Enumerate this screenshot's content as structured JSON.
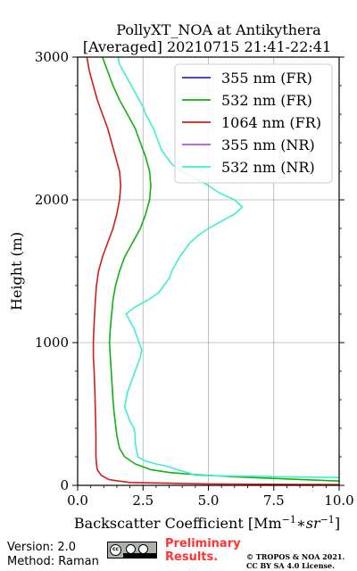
{
  "chart_data": {
    "type": "line",
    "title": "PollyXT_NOA at Antikythera",
    "subtitle": "[Averaged] 20210715 21:41-22:41",
    "xlabel": "Backscatter Coefficient [Mm",
    "xlabel_sup1": "−1",
    "xlabel_mid": "∗sr",
    "xlabel_sup2": "−1",
    "xlabel_end": "]",
    "ylabel": "Height (m)",
    "xlim": [
      0,
      10
    ],
    "ylim": [
      0,
      3000
    ],
    "xticks": [
      0,
      2.5,
      5,
      7.5,
      10
    ],
    "xtick_labels": [
      "0.0",
      "2.5",
      "5.0",
      "7.5",
      "10.0"
    ],
    "yticks": [
      0,
      1000,
      2000,
      3000
    ],
    "ytick_labels": [
      "0",
      "1000",
      "2000",
      "3000"
    ],
    "grid": true,
    "legend_position": "top-right",
    "series": [
      {
        "name": "355 nm (FR)",
        "color": "#2a2ad0",
        "points": []
      },
      {
        "name": "532 nm (FR)",
        "color": "#12b012",
        "points": [
          [
            10,
            30
          ],
          [
            8,
            45
          ],
          [
            6,
            60
          ],
          [
            4.5,
            75
          ],
          [
            3.5,
            90
          ],
          [
            2.8,
            110
          ],
          [
            2.2,
            150
          ],
          [
            1.8,
            200
          ],
          [
            1.6,
            260
          ],
          [
            1.5,
            350
          ],
          [
            1.4,
            500
          ],
          [
            1.35,
            600
          ],
          [
            1.3,
            750
          ],
          [
            1.25,
            900
          ],
          [
            1.22,
            1000
          ],
          [
            1.25,
            1100
          ],
          [
            1.3,
            1200
          ],
          [
            1.35,
            1300
          ],
          [
            1.45,
            1400
          ],
          [
            1.6,
            1500
          ],
          [
            1.8,
            1600
          ],
          [
            2.1,
            1700
          ],
          [
            2.4,
            1800
          ],
          [
            2.6,
            1900
          ],
          [
            2.75,
            2000
          ],
          [
            2.8,
            2100
          ],
          [
            2.75,
            2200
          ],
          [
            2.6,
            2300
          ],
          [
            2.4,
            2400
          ],
          [
            2.2,
            2500
          ],
          [
            1.9,
            2600
          ],
          [
            1.6,
            2700
          ],
          [
            1.35,
            2800
          ],
          [
            1.15,
            2900
          ],
          [
            0.95,
            3000
          ]
        ]
      },
      {
        "name": "1064 nm (FR)",
        "color": "#d41c1c",
        "points": [
          [
            10,
            5
          ],
          [
            5,
            10
          ],
          [
            2,
            20
          ],
          [
            1.2,
            40
          ],
          [
            0.9,
            70
          ],
          [
            0.75,
            110
          ],
          [
            0.72,
            150
          ],
          [
            0.7,
            200
          ],
          [
            0.7,
            350
          ],
          [
            0.68,
            500
          ],
          [
            0.66,
            650
          ],
          [
            0.63,
            800
          ],
          [
            0.6,
            900
          ],
          [
            0.6,
            1000
          ],
          [
            0.62,
            1100
          ],
          [
            0.65,
            1200
          ],
          [
            0.68,
            1300
          ],
          [
            0.72,
            1400
          ],
          [
            0.8,
            1500
          ],
          [
            0.95,
            1600
          ],
          [
            1.15,
            1700
          ],
          [
            1.35,
            1800
          ],
          [
            1.5,
            1900
          ],
          [
            1.6,
            2000
          ],
          [
            1.65,
            2100
          ],
          [
            1.6,
            2200
          ],
          [
            1.45,
            2300
          ],
          [
            1.3,
            2400
          ],
          [
            1.15,
            2500
          ],
          [
            0.95,
            2600
          ],
          [
            0.75,
            2700
          ],
          [
            0.6,
            2800
          ],
          [
            0.45,
            2900
          ],
          [
            0.35,
            3000
          ]
        ]
      },
      {
        "name": "355 nm (NR)",
        "color": "#b355e0",
        "points": []
      },
      {
        "name": "532 nm (NR)",
        "color": "#3ef0d0",
        "points": [
          [
            10,
            55
          ],
          [
            8,
            60
          ],
          [
            6,
            65
          ],
          [
            4.5,
            70
          ],
          [
            4.2,
            90
          ],
          [
            3.8,
            110
          ],
          [
            3.5,
            130
          ],
          [
            3,
            150
          ],
          [
            2.6,
            170
          ],
          [
            2.3,
            200
          ],
          [
            2.25,
            250
          ],
          [
            2.2,
            300
          ],
          [
            2.2,
            350
          ],
          [
            2.15,
            400
          ],
          [
            2.0,
            450
          ],
          [
            1.9,
            500
          ],
          [
            1.8,
            550
          ],
          [
            1.85,
            600
          ],
          [
            1.9,
            650
          ],
          [
            2.0,
            700
          ],
          [
            2.1,
            750
          ],
          [
            2.2,
            800
          ],
          [
            2.3,
            850
          ],
          [
            2.4,
            900
          ],
          [
            2.45,
            950
          ],
          [
            2.35,
            1000
          ],
          [
            2.25,
            1050
          ],
          [
            2.15,
            1100
          ],
          [
            2.0,
            1150
          ],
          [
            1.85,
            1200
          ],
          [
            2.2,
            1250
          ],
          [
            2.7,
            1300
          ],
          [
            3.1,
            1350
          ],
          [
            3.3,
            1400
          ],
          [
            3.5,
            1450
          ],
          [
            3.6,
            1500
          ],
          [
            3.75,
            1550
          ],
          [
            3.9,
            1600
          ],
          [
            4.1,
            1650
          ],
          [
            4.3,
            1700
          ],
          [
            4.6,
            1750
          ],
          [
            5.0,
            1800
          ],
          [
            5.5,
            1850
          ],
          [
            6.0,
            1900
          ],
          [
            6.3,
            1950
          ],
          [
            6.0,
            2000
          ],
          [
            5.4,
            2050
          ],
          [
            5.0,
            2100
          ],
          [
            4.5,
            2150
          ],
          [
            4.0,
            2200
          ],
          [
            3.6,
            2250
          ],
          [
            3.4,
            2300
          ],
          [
            3.2,
            2350
          ],
          [
            3.1,
            2400
          ],
          [
            3.0,
            2450
          ],
          [
            2.9,
            2500
          ],
          [
            2.75,
            2550
          ],
          [
            2.6,
            2600
          ],
          [
            2.5,
            2650
          ],
          [
            2.35,
            2700
          ],
          [
            2.2,
            2750
          ],
          [
            2.05,
            2800
          ],
          [
            1.9,
            2850
          ],
          [
            1.75,
            2900
          ],
          [
            1.6,
            2950
          ],
          [
            1.55,
            3000
          ]
        ]
      }
    ]
  },
  "footer": {
    "version": "Version: 2.0",
    "method": "Method: Raman",
    "cc_label": "cc",
    "prelim_line1": "Preliminary",
    "prelim_line2": "Results.",
    "copyright_line1": "© TROPOS & NOA 2021.",
    "copyright_line2": "CC BY SA 4.0 License."
  }
}
